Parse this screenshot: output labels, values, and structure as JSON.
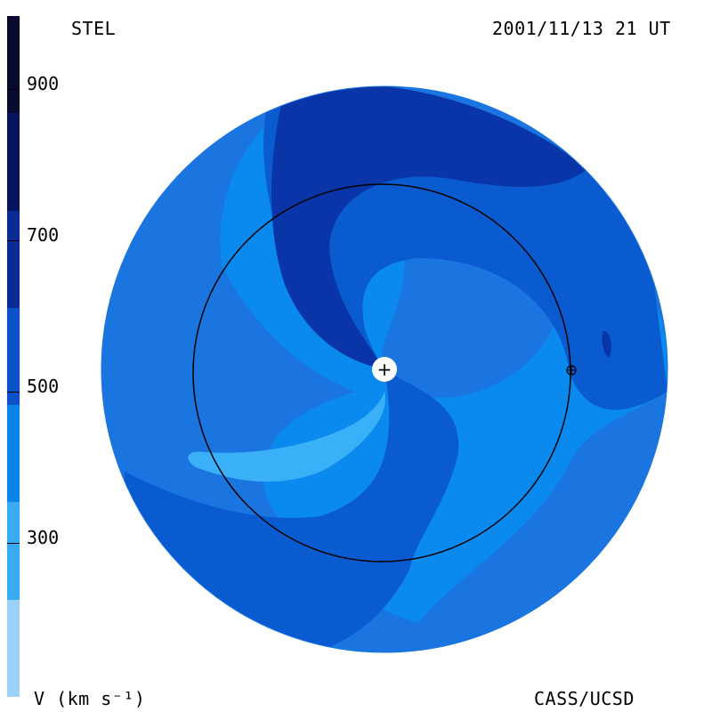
{
  "header": {
    "instrument": "STEL",
    "timestamp": "2001/11/13 21 UT"
  },
  "footer": {
    "units_label": "V (km s⁻¹)",
    "credit": "CASS/UCSD"
  },
  "colorbar": {
    "tick_labels": [
      "900",
      "700",
      "500",
      "300"
    ],
    "bands": [
      {
        "color": "#0a0a2e"
      },
      {
        "color": "#06145c"
      },
      {
        "color": "#0a2a96"
      },
      {
        "color": "#0b52c8"
      },
      {
        "color": "#0a84e8"
      },
      {
        "color": "#3aaaf5"
      },
      {
        "color": "#9ad2f8"
      }
    ]
  },
  "map": {
    "colors": {
      "background": "#1a75e0",
      "darkest_arm": "#0935a8",
      "dark_arm": "#0a5ad0",
      "light_region": "#0a8aee",
      "lightest_arm": "#3ab0f8",
      "sun": "#ffffff",
      "earth_orbit": "#000000"
    },
    "sun_symbol": "+",
    "earth_symbol": "⊕"
  }
}
